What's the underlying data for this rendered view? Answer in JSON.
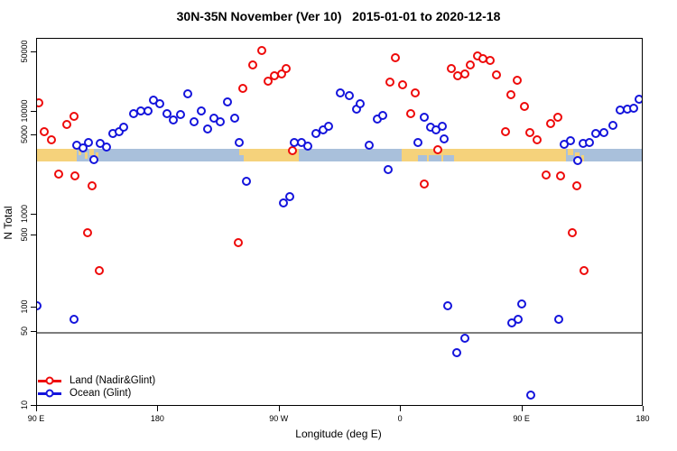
{
  "title": "30N-35N November (Ver 10)   2015-01-01 to 2020-12-18",
  "colors": {
    "land_series": "#ee0a0a",
    "ocean_series": "#1414dc",
    "land_band": "#f5d27b",
    "ocean_band": "#a9c0db",
    "ref_line": "#7d7d7d",
    "axis": "#000000"
  },
  "axes": {
    "x": {
      "label": "Longitude (deg E)",
      "ticks": [
        {
          "lon": 90,
          "label": "90 E"
        },
        {
          "lon": 180,
          "label": "180"
        },
        {
          "lon": 270,
          "label": "90 W"
        },
        {
          "lon": 360,
          "label": "0"
        },
        {
          "lon": 450,
          "label": "90 E"
        },
        {
          "lon": 540,
          "label": "180"
        }
      ]
    },
    "y": {
      "label": "N Total",
      "scale": "log",
      "ticks": [
        {
          "value": 10,
          "label": "10"
        },
        {
          "value": 50,
          "label": "50"
        },
        {
          "value": 100,
          "label": "100"
        },
        {
          "value": 500,
          "label": "500"
        },
        {
          "value": 1000,
          "label": "1000"
        },
        {
          "value": 5000,
          "label": "5000"
        },
        {
          "value": 10000,
          "label": "10000"
        },
        {
          "value": 50000,
          "label": "50000"
        }
      ]
    }
  },
  "legend": {
    "items": [
      {
        "label": "Land (Nadir&Glint)",
        "series": "land"
      },
      {
        "label": "Ocean (Glint)",
        "series": "ocean"
      }
    ]
  },
  "band": {
    "description": "land/ocean mask strip along 30N-35N plotted near N=4000",
    "segments": [
      {
        "from": 90,
        "to": 119.5,
        "type": "land"
      },
      {
        "from": 119.5,
        "to": 240,
        "type": "ocean"
      },
      {
        "from": 240,
        "to": 284.2,
        "type": "land"
      },
      {
        "from": 284.2,
        "to": 360.5,
        "type": "ocean"
      },
      {
        "from": 360.5,
        "to": 480,
        "type": "land"
      },
      {
        "from": 480,
        "to": 540,
        "type": "ocean"
      }
    ],
    "patches": [
      {
        "from": 120.5,
        "to": 122.5,
        "part": "upper",
        "type": "land"
      },
      {
        "from": 125.5,
        "to": 127.5,
        "part": "mid",
        "type": "land"
      },
      {
        "from": 129,
        "to": 132,
        "part": "upper",
        "type": "land"
      },
      {
        "from": 133.5,
        "to": 135.5,
        "part": "mid",
        "type": "land"
      },
      {
        "from": 240,
        "to": 243.5,
        "part": "lower",
        "type": "ocean"
      },
      {
        "from": 372.5,
        "to": 379,
        "part": "lower",
        "type": "ocean"
      },
      {
        "from": 380.5,
        "to": 390,
        "part": "lower",
        "type": "ocean"
      },
      {
        "from": 391.5,
        "to": 399.5,
        "part": "lower",
        "type": "ocean"
      },
      {
        "from": 480,
        "to": 482.5,
        "part": "full",
        "type": "land"
      },
      {
        "from": 483.5,
        "to": 487.5,
        "part": "upper",
        "type": "land"
      },
      {
        "from": 489,
        "to": 492.5,
        "part": "mid",
        "type": "land"
      },
      {
        "from": 493.5,
        "to": 496,
        "part": "lower",
        "type": "land"
      }
    ]
  },
  "chart_data": {
    "type": "scatter",
    "title": "30N-35N November (Ver 10)   2015-01-01 to 2020-12-18",
    "xlabel": "Longitude (deg E)",
    "ylabel": "N Total",
    "x_note": "longitude wraps: 90E eastward to 180, 90W, 0, 90E, 180 (90 to 540 deg)",
    "y_scale": "log",
    "ylim": [
      10,
      60000
    ],
    "ref_line_value": 50,
    "series": [
      {
        "name": "Land (Nadir&Glint)",
        "color_key": "land_series",
        "points": [
          [
            91.3,
            12800
          ],
          [
            95.4,
            5560
          ],
          [
            100.7,
            4560
          ],
          [
            106.1,
            2280
          ],
          [
            112.1,
            6880
          ],
          [
            117.5,
            8750
          ],
          [
            118.1,
            2200
          ],
          [
            127.5,
            547
          ],
          [
            130.9,
            1800
          ],
          [
            136.2,
            228
          ],
          [
            239.3,
            426
          ],
          [
            242.7,
            18900
          ],
          [
            250.0,
            35600
          ],
          [
            256.7,
            52500
          ],
          [
            261.4,
            22900
          ],
          [
            266.1,
            26500
          ],
          [
            271.5,
            27900
          ],
          [
            274.8,
            32200
          ],
          [
            279.5,
            3660
          ],
          [
            351.8,
            22400
          ],
          [
            355.8,
            43200
          ],
          [
            361.2,
            20800
          ],
          [
            367.2,
            9480
          ],
          [
            370.6,
            16700
          ],
          [
            377.3,
            1860
          ],
          [
            387.3,
            3730
          ],
          [
            397.4,
            32200
          ],
          [
            402.1,
            26500
          ],
          [
            407.4,
            27900
          ],
          [
            411.4,
            35600
          ],
          [
            416.8,
            45300
          ],
          [
            420.8,
            42100
          ],
          [
            426.2,
            40100
          ],
          [
            430.9,
            27200
          ],
          [
            437.6,
            5560
          ],
          [
            441.6,
            15900
          ],
          [
            446.3,
            23500
          ],
          [
            451.6,
            11600
          ],
          [
            455.6,
            5420
          ],
          [
            461.0,
            4560
          ],
          [
            467.7,
            2240
          ],
          [
            471.0,
            7070
          ],
          [
            476.4,
            8520
          ],
          [
            478.4,
            2200
          ],
          [
            487.1,
            547
          ],
          [
            490.4,
            1800
          ],
          [
            495.8,
            228
          ]
        ]
      },
      {
        "name": "Ocean (Glint)",
        "color_key": "ocean_series",
        "points": [
          [
            90.0,
            104
          ],
          [
            117.5,
            72
          ],
          [
            119.5,
            4090
          ],
          [
            124.2,
            3870
          ],
          [
            128.2,
            4320
          ],
          [
            132.2,
            3050
          ],
          [
            136.9,
            4240
          ],
          [
            141.6,
            3950
          ],
          [
            146.3,
            5270
          ],
          [
            151.0,
            5560
          ],
          [
            154.3,
            6360
          ],
          [
            161.7,
            9480
          ],
          [
            167.0,
            10250
          ],
          [
            172.4,
            10250
          ],
          [
            176.4,
            13700
          ],
          [
            181.1,
            12500
          ],
          [
            186.4,
            9480
          ],
          [
            191.1,
            7870
          ],
          [
            196.5,
            9230
          ],
          [
            201.8,
            16300
          ],
          [
            206.5,
            7460
          ],
          [
            211.9,
            10250
          ],
          [
            216.6,
            6030
          ],
          [
            221.3,
            8300
          ],
          [
            226.0,
            7460
          ],
          [
            231.3,
            13100
          ],
          [
            236.7,
            8300
          ],
          [
            240.0,
            4320
          ],
          [
            245.4,
            1970
          ],
          [
            272.8,
            1270
          ],
          [
            277.5,
            1440
          ],
          [
            280.9,
            4320
          ],
          [
            286.2,
            4320
          ],
          [
            290.9,
            4010
          ],
          [
            296.9,
            5270
          ],
          [
            302.3,
            5860
          ],
          [
            306.3,
            6530
          ],
          [
            315.0,
            16700
          ],
          [
            321.7,
            15500
          ],
          [
            327.1,
            10800
          ],
          [
            329.8,
            12500
          ],
          [
            336.5,
            4090
          ],
          [
            342.5,
            8070
          ],
          [
            346.5,
            9000
          ],
          [
            350.5,
            2500
          ],
          [
            372.6,
            4320
          ],
          [
            377.3,
            8520
          ],
          [
            382.0,
            6360
          ],
          [
            386.0,
            5860
          ],
          [
            390.7,
            6530
          ],
          [
            392.0,
            4650
          ],
          [
            394.7,
            104
          ],
          [
            401.4,
            32
          ],
          [
            407.4,
            44
          ],
          [
            442.2,
            65
          ],
          [
            446.9,
            72
          ],
          [
            449.6,
            108
          ],
          [
            456.3,
            12.6
          ],
          [
            477.1,
            72
          ],
          [
            481.1,
            4160
          ],
          [
            485.8,
            4480
          ],
          [
            491.1,
            3020
          ],
          [
            495.1,
            4240
          ],
          [
            499.8,
            4320
          ],
          [
            504.5,
            5270
          ],
          [
            510.5,
            5420
          ],
          [
            517.2,
            6700
          ],
          [
            522.6,
            10500
          ],
          [
            527.9,
            10800
          ],
          [
            532.6,
            11000
          ],
          [
            536.6,
            14100
          ]
        ]
      }
    ]
  }
}
